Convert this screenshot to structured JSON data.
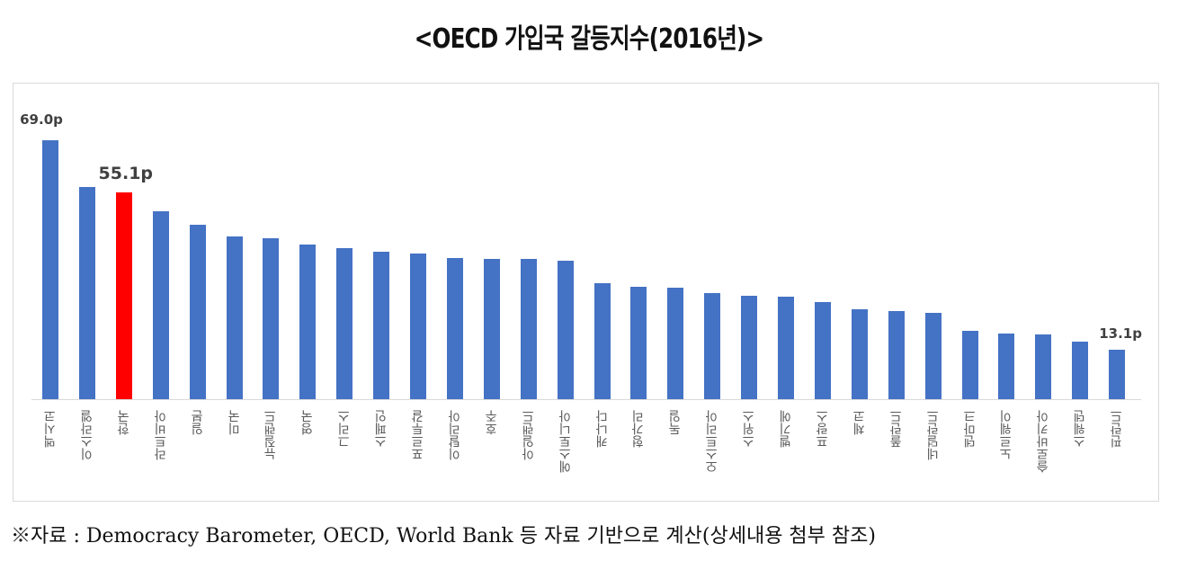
{
  "title": "<OECD 가입국 갈등지수(2016년)>",
  "note": "※자료 : Democracy Barometer, OECD, World Bank 등 자료 기반으로 계산(상세내용 첨부 참조)",
  "colors": {
    "default_bar": "#4472C4",
    "highlight_bar": "#FF0000",
    "axis": "#D9D9D9",
    "label": "#595959",
    "data_label": "#404040"
  },
  "chart_data": {
    "type": "bar",
    "title": "<OECD 가입국 갈등지수(2016년)>",
    "xlabel": "",
    "ylabel": "",
    "ylim": [
      0,
      75
    ],
    "grid": false,
    "legend": "none",
    "categories": [
      "멕시코",
      "이스라엘",
      "한국",
      "라트비아",
      "일본",
      "미국",
      "뉴질랜드",
      "영국",
      "그리스",
      "스페인",
      "포르투갈",
      "이탈리아",
      "호주",
      "아일랜드",
      "에스토니아",
      "캐나다",
      "헝가리",
      "독일",
      "오스트리아",
      "스위스",
      "벨기에",
      "프랑스",
      "체코",
      "폴란드",
      "네덜란드",
      "덴마크",
      "노르웨이",
      "슬로바키아",
      "스웨덴",
      "핀란드"
    ],
    "values": [
      69.0,
      56.6,
      55.1,
      50.1,
      46.5,
      43.4,
      42.9,
      41.2,
      40.4,
      39.4,
      38.8,
      37.6,
      37.3,
      37.3,
      36.9,
      30.9,
      30.0,
      29.7,
      28.3,
      27.6,
      27.3,
      25.8,
      24.0,
      23.4,
      23.0,
      18.2,
      17.6,
      17.3,
      15.4,
      13.1
    ],
    "highlight_index": 2,
    "annotations": [
      {
        "index": 0,
        "text": "69.0p"
      },
      {
        "index": 2,
        "text": "55.1p"
      },
      {
        "index": 29,
        "text": "13.1p"
      }
    ]
  }
}
